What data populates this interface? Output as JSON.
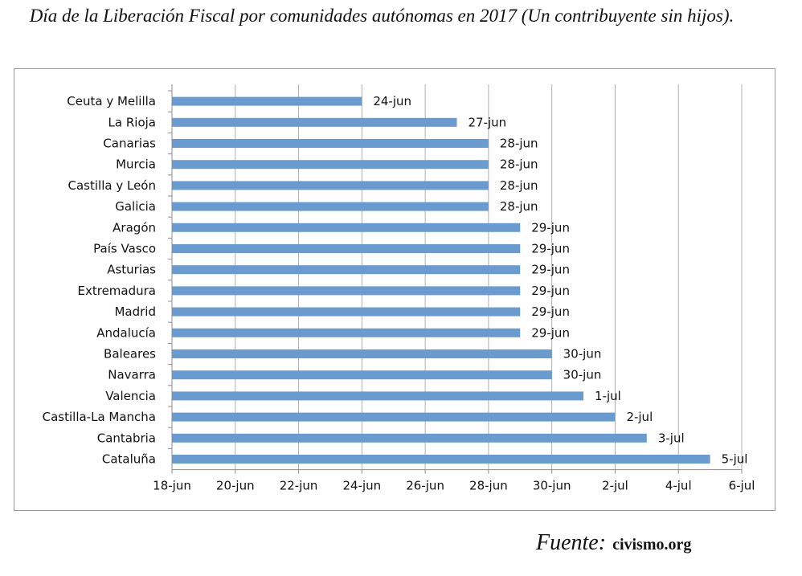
{
  "title": "Día de la Liberación Fiscal por comunidades autónomas en 2017 (Un contribuyente sin hijos).",
  "source": {
    "label": "Fuente:",
    "site": "civismo.org"
  },
  "colors": {
    "bar": "#6a9bd0",
    "grid": "#b0b0b0",
    "axis": "#8c8c8c",
    "text": "#111111"
  },
  "chart_data": {
    "type": "bar",
    "orientation": "horizontal",
    "title": "Día de la Liberación Fiscal por comunidades autónomas en 2017 (Un contribuyente sin hijos).",
    "xlabel": "",
    "ylabel": "",
    "x_unit": "days since 18-jun",
    "xlim": [
      0,
      18
    ],
    "grid": true,
    "legend": "none",
    "x_ticks": [
      {
        "value": 0,
        "label": "18-jun"
      },
      {
        "value": 2,
        "label": "20-jun"
      },
      {
        "value": 4,
        "label": "22-jun"
      },
      {
        "value": 6,
        "label": "24-jun"
      },
      {
        "value": 8,
        "label": "26-jun"
      },
      {
        "value": 10,
        "label": "28-jun"
      },
      {
        "value": 12,
        "label": "30-jun"
      },
      {
        "value": 14,
        "label": "2-jul"
      },
      {
        "value": 16,
        "label": "4-jul"
      },
      {
        "value": 18,
        "label": "6-jul"
      }
    ],
    "categories": [
      "Ceuta y Melilla",
      "La Rioja",
      "Canarias",
      "Murcia",
      "Castilla y León",
      "Galicia",
      "Aragón",
      "País Vasco",
      "Asturias",
      "Extremadura",
      "Madrid",
      "Andalucía",
      "Baleares",
      "Navarra",
      "Valencia",
      "Castilla-La Mancha",
      "Cantabria",
      "Cataluña"
    ],
    "values": [
      6,
      9,
      10,
      10,
      10,
      10,
      11,
      11,
      11,
      11,
      11,
      11,
      12,
      12,
      13,
      14,
      15,
      17
    ],
    "data_labels": [
      "24-jun",
      "27-jun",
      "28-jun",
      "28-jun",
      "28-jun",
      "28-jun",
      "29-jun",
      "29-jun",
      "29-jun",
      "29-jun",
      "29-jun",
      "29-jun",
      "30-jun",
      "30-jun",
      "1-jul",
      "2-jul",
      "3-jul",
      "5-jul"
    ]
  }
}
